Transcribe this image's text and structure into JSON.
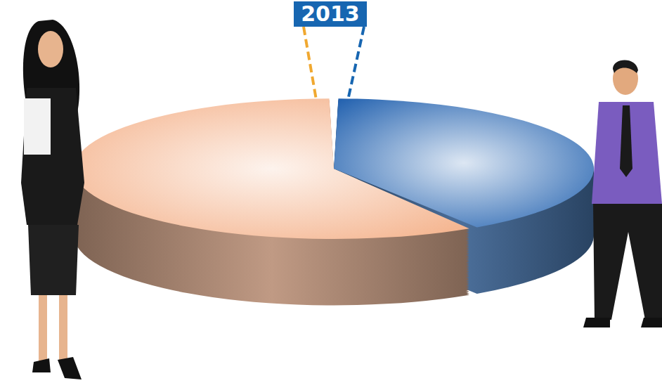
{
  "chart_data": {
    "type": "pie",
    "title": "2013",
    "values": [
      59,
      41
    ],
    "colors": [
      "#f4b088",
      "#1f5fae"
    ]
  }
}
